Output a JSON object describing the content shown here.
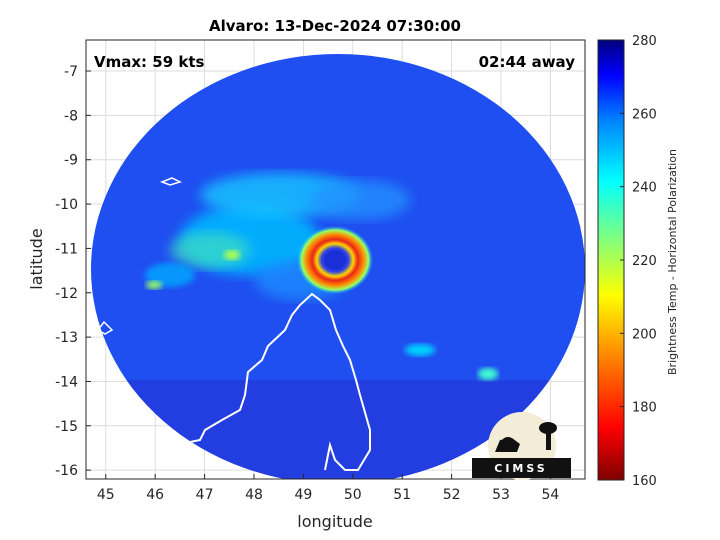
{
  "chart_data": {
    "type": "heatmap",
    "title": "Alvaro: 13-Dec-2024 07:30:00",
    "xlabel": "longitude",
    "ylabel": "latitude",
    "xlim": [
      44.6,
      54.7
    ],
    "ylim": [
      -16.2,
      -6.3
    ],
    "xticks": [
      45,
      46,
      47,
      48,
      49,
      50,
      51,
      52,
      53,
      54
    ],
    "yticks": [
      -7,
      -8,
      -9,
      -10,
      -11,
      -12,
      -13,
      -14,
      -15,
      -16
    ],
    "grid": true,
    "annotations": {
      "vmax": "Vmax: 59 kts",
      "time_away": "02:44 away"
    },
    "storm_center": {
      "lon": 49.7,
      "lat": -11.1
    },
    "colorbar": {
      "label": "Brightness Temp - Horizontal Polarization",
      "range": [
        160,
        280
      ],
      "ticks": [
        280,
        260,
        240,
        220,
        200,
        180,
        160
      ]
    },
    "logo": "CIMSS"
  },
  "colors": {
    "background_field": "#1f4ff0",
    "eye_ring": "#e8261a",
    "eye_core": "#1b2fd6"
  }
}
